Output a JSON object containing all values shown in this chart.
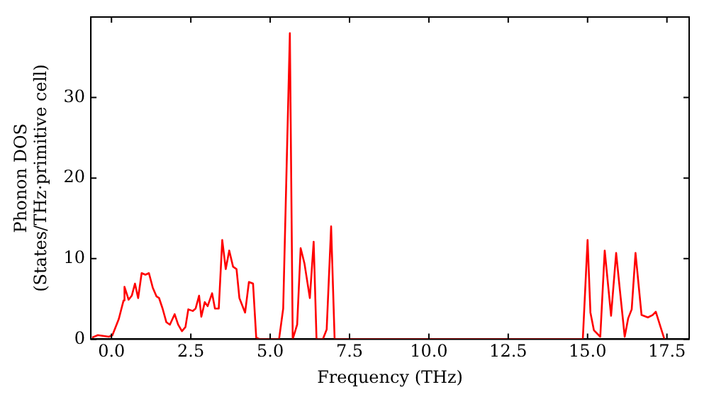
{
  "chart_data": {
    "type": "line",
    "xlabel": "Frequency (THz)",
    "ylabel": "Phonon DOS\n(States/THz·primitive cell)",
    "xlim": [
      -0.65,
      18.2
    ],
    "ylim": [
      0,
      40
    ],
    "xticks": [
      {
        "value": 0,
        "label": "0.0"
      },
      {
        "value": 2.5,
        "label": "2.5"
      },
      {
        "value": 5,
        "label": "5.0"
      },
      {
        "value": 7.5,
        "label": "7.5"
      },
      {
        "value": 10,
        "label": "10.0"
      },
      {
        "value": 12.5,
        "label": "12.5"
      },
      {
        "value": 15,
        "label": "15.0"
      },
      {
        "value": 17.5,
        "label": "17.5"
      }
    ],
    "yticks": [
      0,
      10,
      20,
      30
    ],
    "grid": false,
    "legend": false,
    "marker": "none",
    "line_style": "solid",
    "series": [
      {
        "color": "#ff0000",
        "x": [
          -0.61,
          -0.43,
          -0.08,
          0.03,
          0.23,
          0.38,
          0.41,
          0.54,
          0.64,
          0.74,
          0.84,
          0.95,
          1.07,
          1.18,
          1.3,
          1.42,
          1.5,
          1.61,
          1.73,
          1.84,
          1.99,
          2.1,
          2.22,
          2.33,
          2.42,
          2.56,
          2.65,
          2.76,
          2.83,
          2.94,
          3.03,
          3.17,
          3.26,
          3.38,
          3.49,
          3.6,
          3.71,
          3.83,
          3.94,
          4.03,
          4.21,
          4.33,
          4.46,
          4.56,
          4.67,
          5.28,
          5.41,
          5.62,
          5.71,
          5.85,
          5.96,
          6.08,
          6.25,
          6.37,
          6.46,
          6.66,
          6.78,
          6.92,
          7.03,
          14.85,
          15.0,
          15.09,
          15.2,
          15.4,
          15.54,
          15.74,
          15.9,
          16.02,
          16.17,
          16.28,
          16.39,
          16.51,
          16.7,
          16.9,
          17.05,
          17.15,
          17.3,
          17.42
        ],
        "values": [
          0.2,
          0.5,
          0.3,
          0.5,
          2.5,
          4.8,
          6.5,
          4.9,
          5.4,
          6.9,
          5.1,
          8.2,
          8.0,
          8.2,
          6.4,
          5.3,
          5.1,
          3.8,
          2.1,
          1.8,
          3.1,
          1.8,
          1.0,
          1.5,
          3.7,
          3.5,
          3.8,
          5.4,
          2.8,
          4.6,
          4.1,
          5.7,
          3.8,
          3.8,
          12.3,
          8.7,
          11.0,
          9.0,
          8.7,
          5.1,
          3.3,
          7.1,
          6.9,
          0.2,
          0,
          0,
          3.8,
          38,
          0,
          1.8,
          11.3,
          9.4,
          5.1,
          12.1,
          0,
          0,
          1.2,
          14.0,
          0,
          0,
          12.3,
          3.3,
          1.1,
          0.3,
          11.0,
          2.9,
          10.7,
          6.0,
          0.3,
          2.6,
          3.7,
          10.7,
          3.0,
          2.7,
          3.0,
          3.4,
          1.5,
          0
        ]
      }
    ]
  }
}
